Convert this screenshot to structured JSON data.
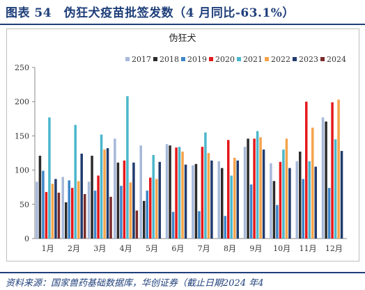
{
  "figure_title": "图表 54　伪狂犬疫苗批签发数（4 月同比-63.1%）",
  "source": "资料来源：国家兽药基础数据库，华创证券（截止日期2024 年4",
  "chart_data": {
    "type": "bar",
    "title": "伪狂犬",
    "xlabel": "",
    "ylabel": "",
    "categories": [
      "1月",
      "2月",
      "3月",
      "4月",
      "5月",
      "6月",
      "7月",
      "8月",
      "9月",
      "10月",
      "11月",
      "12月"
    ],
    "ylim": [
      0,
      250
    ],
    "yticks": [
      0,
      50,
      100,
      150,
      200,
      250
    ],
    "legend_position": "top",
    "grid": false,
    "series": [
      {
        "name": "2017",
        "color": "#a6b9d9",
        "values": [
          83,
          90,
          83,
          146,
          136,
          138,
          107,
          113,
          134,
          110,
          113,
          177
        ]
      },
      {
        "name": "2018",
        "color": "#2b2b2b",
        "values": [
          121,
          53,
          121,
          111,
          55,
          136,
          109,
          103,
          146,
          84,
          127,
          171
        ]
      },
      {
        "name": "2019",
        "color": "#3f86c9",
        "values": [
          99,
          85,
          70,
          77,
          70,
          39,
          40,
          33,
          79,
          49,
          87,
          74
        ]
      },
      {
        "name": "2020",
        "color": "#e4191b",
        "values": [
          68,
          74,
          92,
          114,
          89,
          133,
          134,
          144,
          146,
          112,
          200,
          199
        ]
      },
      {
        "name": "2021",
        "color": "#4bb7cc",
        "values": [
          177,
          166,
          152,
          208,
          122,
          134,
          155,
          92,
          157,
          130,
          113,
          145
        ]
      },
      {
        "name": "2022",
        "color": "#f5a34b",
        "values": [
          80,
          84,
          130,
          82,
          87,
          127,
          125,
          118,
          148,
          146,
          162,
          203
        ]
      },
      {
        "name": "2023",
        "color": "#213c6e",
        "values": [
          87,
          124,
          132,
          111,
          112,
          108,
          114,
          114,
          130,
          103,
          105,
          128
        ]
      },
      {
        "name": "2024",
        "color": "#7a2c2c",
        "values": [
          67,
          65,
          61,
          41,
          null,
          null,
          null,
          null,
          null,
          null,
          null,
          null
        ]
      }
    ]
  }
}
